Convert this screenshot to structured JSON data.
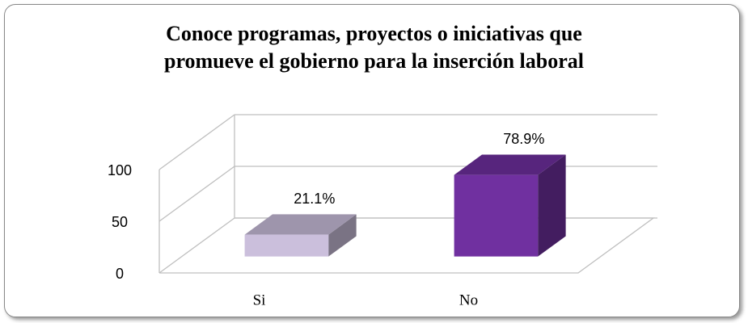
{
  "chart_data": {
    "type": "bar3d",
    "title": "Conoce programas, proyectos o iniciativas que promueve el gobierno para la inserción laboral",
    "categories": [
      "Si",
      "No"
    ],
    "values": [
      21.1,
      78.9
    ],
    "value_labels": [
      "21.1%",
      "78.9%"
    ],
    "colors": [
      "#cbbfdc",
      "#7030a0"
    ],
    "ylim": [
      0,
      100
    ],
    "yticks": [
      0,
      50,
      100
    ],
    "grid": true
  }
}
